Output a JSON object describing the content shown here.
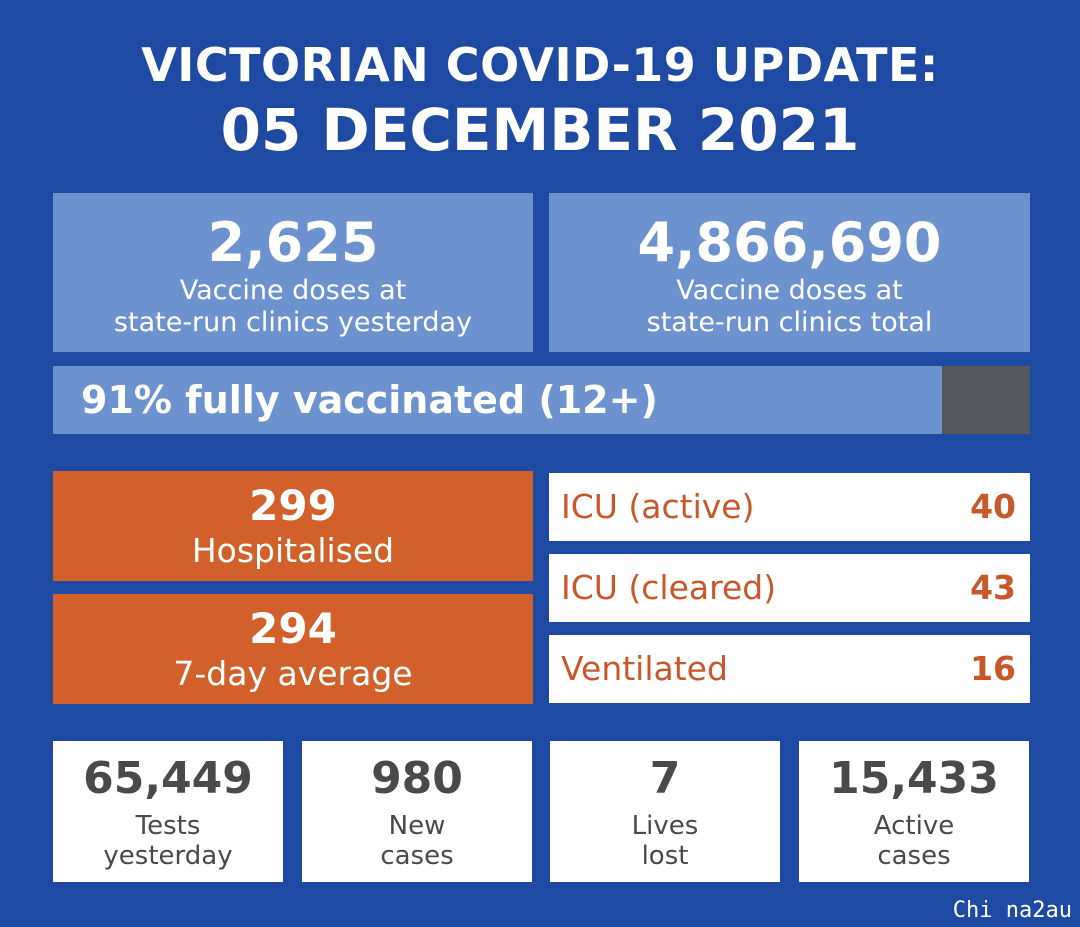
{
  "header": {
    "title": "VICTORIAN COVID-19 UPDATE:",
    "date": "05 DECEMBER 2021"
  },
  "vaccine": {
    "yesterday": {
      "value": "2,625",
      "line1": "Vaccine doses at",
      "line2": "state-run clinics yesterday"
    },
    "total": {
      "value": "4,866,690",
      "line1": "Vaccine doses at",
      "line2": "state-run clinics total"
    }
  },
  "fully_vaccinated": {
    "label": "91% fully vaccinated (12+)",
    "fraction": 0.91
  },
  "hospital": {
    "hospitalised": {
      "value": "299",
      "label": "Hospitalised"
    },
    "average": {
      "value": "294",
      "label": "7-day average"
    },
    "rows": [
      {
        "label": "ICU (active)",
        "value": "40"
      },
      {
        "label": "ICU (cleared)",
        "value": "43"
      },
      {
        "label": "Ventilated",
        "value": "16"
      }
    ]
  },
  "stats": [
    {
      "value": "65,449",
      "line1": "Tests",
      "line2": "yesterday"
    },
    {
      "value": "980",
      "line1": "New",
      "line2": "cases"
    },
    {
      "value": "7",
      "line1": "Lives",
      "line2": "lost"
    },
    {
      "value": "15,433",
      "line1": "Active",
      "line2": "cases"
    }
  ],
  "watermark": "Chi na2au",
  "colors": {
    "background": "#1f4aa3",
    "vaccine_box": "#6d93cf",
    "progress_remaining": "#54575e",
    "hospital_orange": "#d2602a",
    "icu_text": "#c8582a",
    "stat_text": "#4a4a4a"
  }
}
